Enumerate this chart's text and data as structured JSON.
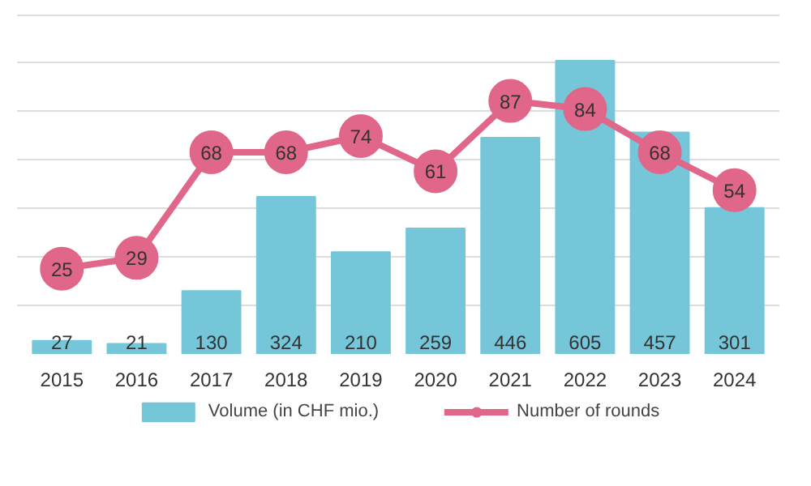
{
  "chart_data": {
    "type": "bar",
    "categories": [
      "2015",
      "2016",
      "2017",
      "2018",
      "2019",
      "2020",
      "2021",
      "2022",
      "2023",
      "2024"
    ],
    "series": [
      {
        "name": "Volume (in CHF mio.)",
        "type": "bar",
        "color": "#74c6d8",
        "values": [
          27,
          21,
          130,
          324,
          210,
          259,
          446,
          605,
          457,
          301
        ]
      },
      {
        "name": "Number of rounds",
        "type": "line",
        "axis": "y2",
        "color": "#e0668a",
        "marker": "circle",
        "values": [
          25,
          29,
          68,
          68,
          74,
          61,
          87,
          84,
          68,
          54
        ]
      }
    ],
    "grid": "y",
    "legend": "bottom",
    "data_labels": true,
    "tick_labels": "x"
  }
}
